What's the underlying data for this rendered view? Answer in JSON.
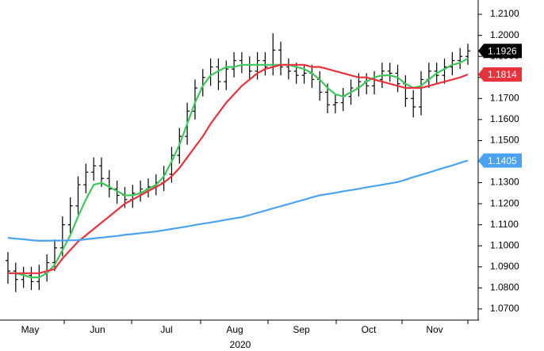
{
  "chart_data": {
    "type": "ohlc",
    "color": "#000000",
    "open": [
      1.093,
      1.088,
      1.084,
      1.086,
      1.083,
      1.087,
      1.092,
      1.099,
      1.11,
      1.119,
      1.129,
      1.135,
      1.138,
      1.132,
      1.127,
      1.124,
      1.122,
      1.125,
      1.127,
      1.128,
      1.13,
      1.134,
      1.143,
      1.152,
      1.164,
      1.175,
      1.18,
      1.185,
      1.178,
      1.184,
      1.188,
      1.186,
      1.183,
      1.188,
      1.185,
      1.193,
      1.185,
      1.183,
      1.181,
      1.182,
      1.179,
      1.173,
      1.167,
      1.168,
      1.171,
      1.175,
      1.178,
      1.176,
      1.179,
      1.183,
      1.182,
      1.177,
      1.17,
      1.166,
      1.179,
      1.183,
      1.181,
      1.185,
      1.188,
      1.19
    ],
    "high": [
      1.097,
      1.092,
      1.09,
      1.09,
      1.091,
      1.096,
      1.103,
      1.114,
      1.123,
      1.133,
      1.139,
      1.142,
      1.142,
      1.136,
      1.131,
      1.128,
      1.129,
      1.131,
      1.132,
      1.134,
      1.138,
      1.147,
      1.156,
      1.168,
      1.179,
      1.184,
      1.189,
      1.189,
      1.188,
      1.192,
      1.192,
      1.19,
      1.192,
      1.192,
      1.201,
      1.197,
      1.189,
      1.187,
      1.186,
      1.186,
      1.183,
      1.177,
      1.172,
      1.175,
      1.179,
      1.182,
      1.182,
      1.183,
      1.187,
      1.187,
      1.186,
      1.181,
      1.174,
      1.183,
      1.187,
      1.187,
      1.189,
      1.192,
      1.194,
      1.196
    ],
    "low": [
      1.082,
      1.078,
      1.08,
      1.079,
      1.079,
      1.083,
      1.088,
      1.095,
      1.106,
      1.115,
      1.125,
      1.131,
      1.128,
      1.123,
      1.12,
      1.118,
      1.118,
      1.121,
      1.123,
      1.124,
      1.126,
      1.13,
      1.139,
      1.148,
      1.16,
      1.171,
      1.176,
      1.174,
      1.174,
      1.18,
      1.182,
      1.179,
      1.179,
      1.181,
      1.181,
      1.181,
      1.179,
      1.177,
      1.177,
      1.175,
      1.169,
      1.163,
      1.163,
      1.164,
      1.167,
      1.171,
      1.172,
      1.172,
      1.175,
      1.178,
      1.173,
      1.166,
      1.161,
      1.162,
      1.175,
      1.177,
      1.177,
      1.181,
      1.184,
      1.186
    ],
    "close": [
      1.088,
      1.084,
      1.086,
      1.083,
      1.087,
      1.092,
      1.099,
      1.11,
      1.119,
      1.129,
      1.135,
      1.138,
      1.132,
      1.127,
      1.124,
      1.122,
      1.125,
      1.127,
      1.128,
      1.13,
      1.134,
      1.143,
      1.152,
      1.164,
      1.175,
      1.18,
      1.185,
      1.178,
      1.184,
      1.188,
      1.186,
      1.183,
      1.188,
      1.185,
      1.193,
      1.185,
      1.183,
      1.181,
      1.182,
      1.179,
      1.173,
      1.167,
      1.168,
      1.171,
      1.175,
      1.178,
      1.176,
      1.179,
      1.183,
      1.182,
      1.177,
      1.17,
      1.166,
      1.179,
      1.183,
      1.181,
      1.185,
      1.188,
      1.19,
      1.1926
    ],
    "last_label": "1.1926",
    "series": [
      {
        "color": "#3cc95a",
        "values": [
          1.087,
          1.087,
          1.086,
          1.085,
          1.085,
          1.087,
          1.091,
          1.098,
          1.105,
          1.114,
          1.122,
          1.129,
          1.13,
          1.128,
          1.126,
          1.124,
          1.124,
          1.125,
          1.127,
          1.129,
          1.133,
          1.14,
          1.148,
          1.158,
          1.168,
          1.176,
          1.181,
          1.183,
          1.185,
          1.185,
          1.186,
          1.186,
          1.186,
          1.186,
          1.186,
          1.186,
          1.186,
          1.185,
          1.184,
          1.182,
          1.179,
          1.175,
          1.172,
          1.171,
          1.173,
          1.175,
          1.178,
          1.18,
          1.181,
          1.181,
          1.18,
          1.177,
          1.175,
          1.176,
          1.179,
          1.182,
          1.184,
          1.186,
          1.187,
          1.189
        ]
      },
      {
        "color": "#e8323c",
        "last_label": "1.1814",
        "values": [
          1.087,
          1.087,
          1.087,
          1.087,
          1.087,
          1.088,
          1.089,
          1.094,
          1.098,
          1.102,
          1.105,
          1.108,
          1.111,
          1.114,
          1.117,
          1.12,
          1.122,
          1.124,
          1.126,
          1.128,
          1.13,
          1.133,
          1.137,
          1.142,
          1.147,
          1.152,
          1.158,
          1.163,
          1.168,
          1.172,
          1.176,
          1.179,
          1.182,
          1.184,
          1.185,
          1.186,
          1.186,
          1.186,
          1.186,
          1.185,
          1.185,
          1.184,
          1.183,
          1.182,
          1.181,
          1.18,
          1.18,
          1.179,
          1.178,
          1.177,
          1.176,
          1.175,
          1.175,
          1.175,
          1.176,
          1.177,
          1.178,
          1.179,
          1.18,
          1.1814
        ]
      },
      {
        "color": "#4aa3f2",
        "last_label": "1.1405",
        "values": [
          1.1038,
          1.1034,
          1.1031,
          1.1027,
          1.1024,
          1.1024,
          1.1025,
          1.1025,
          1.1026,
          1.1027,
          1.1031,
          1.1035,
          1.1039,
          1.1043,
          1.1047,
          1.1052,
          1.1056,
          1.106,
          1.1064,
          1.1068,
          1.1074,
          1.108,
          1.1086,
          1.1092,
          1.1099,
          1.1105,
          1.1111,
          1.1117,
          1.1124,
          1.113,
          1.1136,
          1.1146,
          1.1157,
          1.1167,
          1.1178,
          1.1188,
          1.1198,
          1.1209,
          1.1219,
          1.123,
          1.124,
          1.1246,
          1.1252,
          1.1259,
          1.1265,
          1.1271,
          1.1278,
          1.1284,
          1.129,
          1.1297,
          1.1303,
          1.1314,
          1.1326,
          1.1337,
          1.1348,
          1.136,
          1.1371,
          1.1382,
          1.1394,
          1.1405
        ]
      }
    ],
    "months": [
      "May",
      "Jun",
      "Jul",
      "Aug",
      "Sep",
      "Oct",
      "Nov"
    ],
    "year": "2020",
    "ylim": [
      1.0647,
      1.2168
    ],
    "yticks": [
      {
        "value": 1.07,
        "label": "1.0700"
      },
      {
        "value": 1.08,
        "label": "1.0800"
      },
      {
        "value": 1.09,
        "label": "1.0900"
      },
      {
        "value": 1.1,
        "label": "1.1000"
      },
      {
        "value": 1.11,
        "label": "1.1100"
      },
      {
        "value": 1.12,
        "label": "1.1200"
      },
      {
        "value": 1.13,
        "label": "1.1300"
      },
      {
        "value": 1.14,
        "label": "1.1400"
      },
      {
        "value": 1.15,
        "label": "1.1500"
      },
      {
        "value": 1.16,
        "label": "1.1600"
      },
      {
        "value": 1.17,
        "label": "1.1700"
      },
      {
        "value": 1.18,
        "label": "1.1800"
      },
      {
        "value": 1.19,
        "label": "1.1900"
      },
      {
        "value": 1.2,
        "label": "1.2000"
      },
      {
        "value": 1.21,
        "label": "1.2100"
      }
    ]
  }
}
